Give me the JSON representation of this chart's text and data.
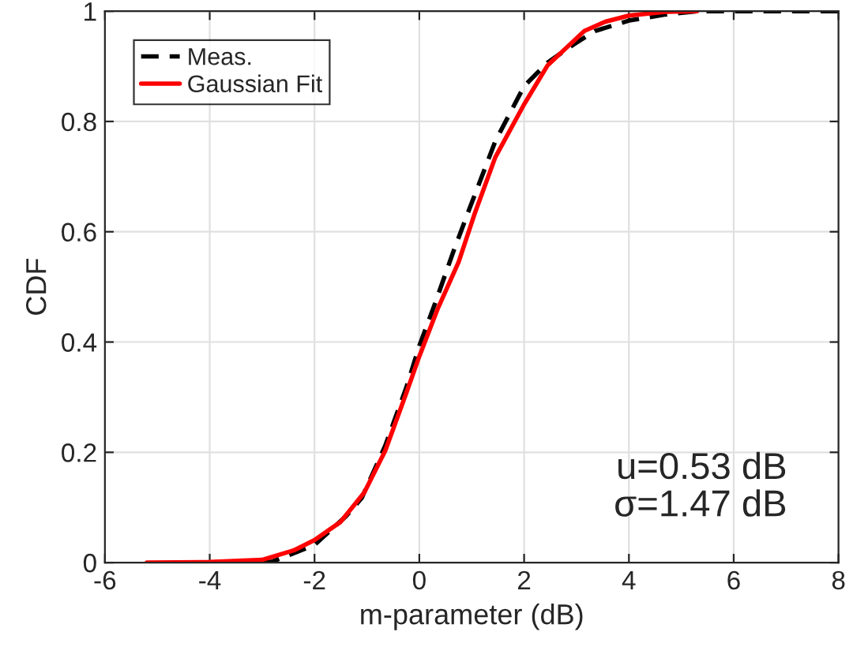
{
  "chart_data": {
    "type": "line",
    "xlabel": "m-parameter (dB)",
    "ylabel": "CDF",
    "xlim": [
      -6,
      8
    ],
    "xticks": [
      -6,
      -4,
      -2,
      0,
      2,
      4,
      6,
      8
    ],
    "ylim": [
      0,
      1
    ],
    "yticks": [
      0,
      0.2,
      0.4,
      0.6,
      0.8,
      1
    ],
    "grid": true,
    "legend": "top left",
    "annotations": [
      "u=0.53 dB\nσ=1.47 dB"
    ],
    "series": [
      {
        "name": "Meas.",
        "color": "#000000",
        "line_style": "dashed",
        "x": [
          -3.0,
          -2.8,
          -2.0,
          -1.4,
          -1.1,
          -0.65,
          -0.25,
          0,
          0.3,
          0.65,
          0.95,
          1.45,
          2.0,
          2.45,
          2.95,
          3.35,
          4.0,
          4.7,
          5.3,
          8.0
        ],
        "values": [
          0,
          0.002,
          0.032,
          0.084,
          0.117,
          0.212,
          0.317,
          0.393,
          0.47,
          0.564,
          0.64,
          0.764,
          0.864,
          0.907,
          0.94,
          0.964,
          0.983,
          0.994,
          1.0,
          1.0
        ]
      },
      {
        "name": "Gaussian Fit",
        "color": "#ff0000",
        "line_style": "solid",
        "x": [
          -5.2,
          -4.0,
          -3.0,
          -2.4,
          -2.0,
          -1.5,
          -1.05,
          -0.65,
          -0.25,
          0,
          0.35,
          0.75,
          1.05,
          1.45,
          2.0,
          2.45,
          3.15,
          3.55,
          4.0,
          4.7,
          5.3
        ],
        "values": [
          0,
          0.001,
          0.005,
          0.022,
          0.041,
          0.074,
          0.127,
          0.203,
          0.307,
          0.374,
          0.46,
          0.545,
          0.631,
          0.735,
          0.831,
          0.902,
          0.964,
          0.981,
          0.992,
          0.999,
          1.0
        ]
      }
    ]
  }
}
